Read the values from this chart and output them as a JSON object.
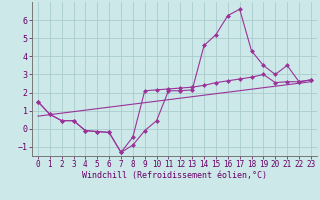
{
  "xlabel": "Windchill (Refroidissement éolien,°C)",
  "bg_color": "#cde8e8",
  "grid_color": "#aacccc",
  "line_color": "#993399",
  "xlim": [
    -0.5,
    23.5
  ],
  "ylim": [
    -1.5,
    7.0
  ],
  "xticks": [
    0,
    1,
    2,
    3,
    4,
    5,
    6,
    7,
    8,
    9,
    10,
    11,
    12,
    13,
    14,
    15,
    16,
    17,
    18,
    19,
    20,
    21,
    22,
    23
  ],
  "yticks": [
    -1,
    0,
    1,
    2,
    3,
    4,
    5,
    6
  ],
  "line1_x": [
    0,
    1,
    2,
    3,
    4,
    5,
    6,
    7,
    8,
    9,
    10,
    11,
    12,
    13,
    14,
    15,
    16,
    17,
    18,
    19,
    20,
    21,
    22,
    23
  ],
  "line1_y": [
    1.5,
    0.8,
    0.45,
    0.45,
    -0.1,
    -0.15,
    -0.2,
    -1.3,
    -0.9,
    -0.1,
    0.45,
    2.1,
    2.1,
    2.15,
    4.6,
    5.2,
    6.25,
    6.6,
    4.3,
    3.5,
    3.0,
    3.5,
    2.6,
    2.7
  ],
  "line2_x": [
    0,
    1,
    2,
    3,
    4,
    5,
    6,
    7,
    8,
    9,
    10,
    11,
    12,
    13,
    14,
    15,
    16,
    17,
    18,
    19,
    20,
    21,
    22,
    23
  ],
  "line2_y": [
    1.5,
    0.8,
    0.45,
    0.45,
    -0.1,
    -0.15,
    -0.2,
    -1.3,
    -0.45,
    2.1,
    2.15,
    2.2,
    2.25,
    2.3,
    2.4,
    2.55,
    2.65,
    2.75,
    2.85,
    3.0,
    2.55,
    2.6,
    2.6,
    2.7
  ],
  "line3_x": [
    0,
    23
  ],
  "line3_y": [
    0.7,
    2.6
  ],
  "marker": "D",
  "markersize": 2.5,
  "linewidth": 0.8,
  "tick_fontsize": 5.5,
  "xlabel_fontsize": 6.0
}
